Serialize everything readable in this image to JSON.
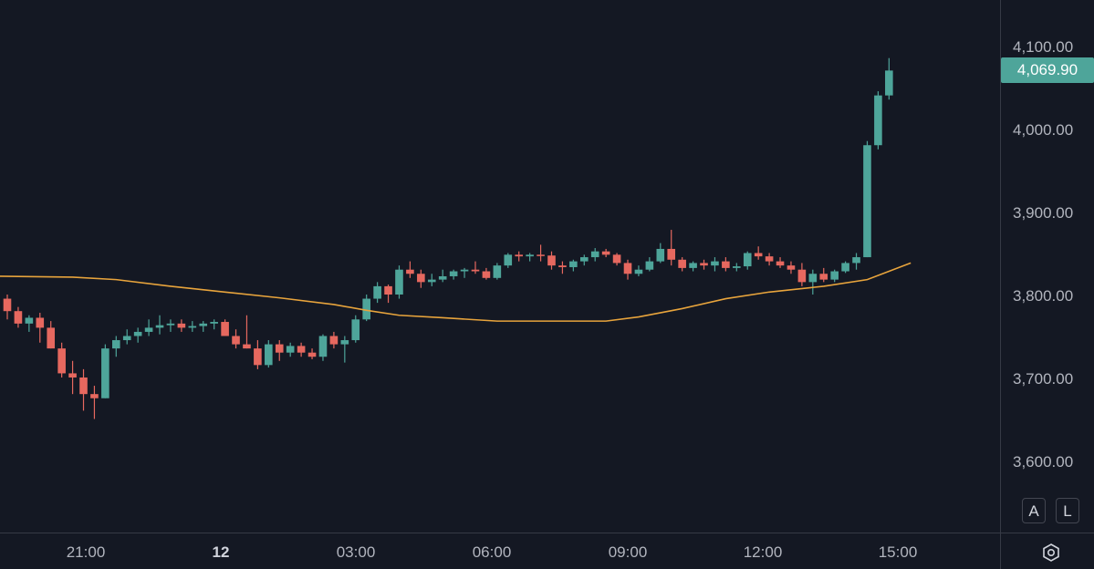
{
  "chart_data": {
    "type": "candlestick",
    "price_axis": {
      "ticks": [
        4100,
        4000,
        3900,
        3800,
        3700,
        3600
      ],
      "tick_labels": [
        "4,100.00",
        "4,000.00",
        "3,900.00",
        "3,800.00",
        "3,700.00",
        "3,600.00"
      ]
    },
    "last_price": "4,069.90",
    "time_axis": {
      "labels": [
        {
          "text": "21:00",
          "bold": false
        },
        {
          "text": "12",
          "bold": true
        },
        {
          "text": "03:00",
          "bold": false
        },
        {
          "text": "06:00",
          "bold": false
        },
        {
          "text": "09:00",
          "bold": false
        },
        {
          "text": "12:00",
          "bold": false
        },
        {
          "text": "15:00",
          "bold": false
        }
      ]
    },
    "candles": [
      [
        3795,
        3800,
        3770,
        3780
      ],
      [
        3780,
        3785,
        3760,
        3765
      ],
      [
        3765,
        3775,
        3755,
        3772
      ],
      [
        3772,
        3778,
        3742,
        3760
      ],
      [
        3760,
        3768,
        3735,
        3735
      ],
      [
        3735,
        3742,
        3700,
        3705
      ],
      [
        3705,
        3720,
        3680,
        3700
      ],
      [
        3700,
        3710,
        3660,
        3680
      ],
      [
        3680,
        3690,
        3650,
        3675
      ],
      [
        3675,
        3740,
        3675,
        3735
      ],
      [
        3735,
        3750,
        3725,
        3745
      ],
      [
        3745,
        3758,
        3740,
        3750
      ],
      [
        3750,
        3760,
        3742,
        3755
      ],
      [
        3755,
        3770,
        3750,
        3760
      ],
      [
        3760,
        3775,
        3752,
        3763
      ],
      [
        3763,
        3770,
        3755,
        3765
      ],
      [
        3765,
        3770,
        3755,
        3760
      ],
      [
        3760,
        3768,
        3755,
        3762
      ],
      [
        3762,
        3768,
        3755,
        3765
      ],
      [
        3765,
        3770,
        3758,
        3767
      ],
      [
        3767,
        3770,
        3750,
        3750
      ],
      [
        3750,
        3758,
        3735,
        3740
      ],
      [
        3740,
        3775,
        3735,
        3735
      ],
      [
        3735,
        3745,
        3710,
        3715
      ],
      [
        3715,
        3745,
        3712,
        3740
      ],
      [
        3740,
        3745,
        3720,
        3730
      ],
      [
        3730,
        3742,
        3725,
        3738
      ],
      [
        3738,
        3742,
        3725,
        3730
      ],
      [
        3730,
        3735,
        3722,
        3725
      ],
      [
        3725,
        3752,
        3720,
        3750
      ],
      [
        3750,
        3755,
        3735,
        3740
      ],
      [
        3740,
        3750,
        3718,
        3745
      ],
      [
        3745,
        3775,
        3742,
        3770
      ],
      [
        3770,
        3800,
        3768,
        3795
      ],
      [
        3795,
        3815,
        3790,
        3810
      ],
      [
        3810,
        3812,
        3790,
        3800
      ],
      [
        3800,
        3835,
        3795,
        3830
      ],
      [
        3830,
        3840,
        3820,
        3825
      ],
      [
        3825,
        3830,
        3808,
        3815
      ],
      [
        3815,
        3825,
        3810,
        3818
      ],
      [
        3818,
        3830,
        3815,
        3822
      ],
      [
        3822,
        3830,
        3818,
        3828
      ],
      [
        3828,
        3832,
        3820,
        3830
      ],
      [
        3830,
        3840,
        3825,
        3828
      ],
      [
        3828,
        3832,
        3818,
        3820
      ],
      [
        3820,
        3838,
        3818,
        3835
      ],
      [
        3835,
        3850,
        3832,
        3848
      ],
      [
        3848,
        3852,
        3840,
        3846
      ],
      [
        3846,
        3850,
        3840,
        3848
      ],
      [
        3848,
        3860,
        3840,
        3847
      ],
      [
        3847,
        3852,
        3830,
        3835
      ],
      [
        3835,
        3840,
        3825,
        3833
      ],
      [
        3833,
        3842,
        3828,
        3840
      ],
      [
        3840,
        3848,
        3835,
        3845
      ],
      [
        3845,
        3856,
        3840,
        3852
      ],
      [
        3852,
        3855,
        3845,
        3848
      ],
      [
        3848,
        3850,
        3835,
        3838
      ],
      [
        3838,
        3842,
        3818,
        3825
      ],
      [
        3825,
        3835,
        3822,
        3830
      ],
      [
        3830,
        3845,
        3828,
        3840
      ],
      [
        3840,
        3862,
        3838,
        3855
      ],
      [
        3855,
        3878,
        3835,
        3842
      ],
      [
        3842,
        3845,
        3828,
        3832
      ],
      [
        3832,
        3840,
        3828,
        3838
      ],
      [
        3838,
        3842,
        3830,
        3835
      ],
      [
        3835,
        3845,
        3828,
        3840
      ],
      [
        3840,
        3845,
        3828,
        3832
      ],
      [
        3832,
        3838,
        3828,
        3834
      ],
      [
        3834,
        3852,
        3830,
        3850
      ],
      [
        3850,
        3858,
        3842,
        3846
      ],
      [
        3846,
        3850,
        3835,
        3840
      ],
      [
        3840,
        3845,
        3832,
        3835
      ],
      [
        3835,
        3840,
        3825,
        3830
      ],
      [
        3830,
        3838,
        3810,
        3815
      ],
      [
        3815,
        3830,
        3800,
        3825
      ],
      [
        3825,
        3832,
        3815,
        3818
      ],
      [
        3818,
        3830,
        3815,
        3828
      ],
      [
        3828,
        3840,
        3826,
        3838
      ],
      [
        3838,
        3850,
        3830,
        3845
      ],
      [
        3845,
        3985,
        3845,
        3980
      ],
      [
        3980,
        4045,
        3975,
        4040
      ],
      [
        4040,
        4085,
        4035,
        4070
      ]
    ],
    "sma": [
      [
        0,
        3822
      ],
      [
        6,
        3821
      ],
      [
        10,
        3818
      ],
      [
        15,
        3810
      ],
      [
        20,
        3803
      ],
      [
        25,
        3796
      ],
      [
        30,
        3788
      ],
      [
        33,
        3781
      ],
      [
        36,
        3775
      ],
      [
        40,
        3772
      ],
      [
        45,
        3768
      ],
      [
        50,
        3768
      ],
      [
        55,
        3768
      ],
      [
        58,
        3773
      ],
      [
        62,
        3783
      ],
      [
        66,
        3795
      ],
      [
        70,
        3803
      ],
      [
        75,
        3810
      ],
      [
        79,
        3818
      ],
      [
        81,
        3828
      ],
      [
        83,
        3838
      ]
    ],
    "colors": {
      "up": "#4ea59a",
      "down": "#e6685f",
      "sma": "#e8a43c"
    }
  },
  "controls": {
    "auto_label": "A",
    "log_label": "L",
    "settings_icon": "gear-hexagon-icon"
  }
}
